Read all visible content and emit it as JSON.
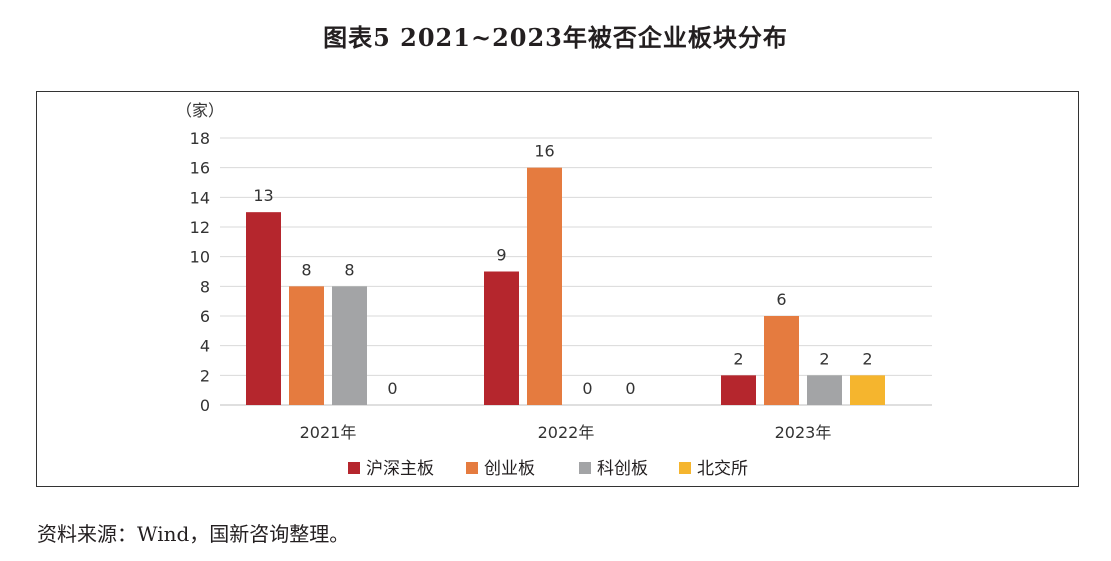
{
  "title": "图表5 2021~2023年被否企业板块分布",
  "source_note": "资料来源：Wind，国新咨询整理。",
  "chart_data": {
    "type": "bar",
    "title": "",
    "ylabel": "（家）",
    "xlabel": "",
    "ylim": [
      0,
      18
    ],
    "yticks": [
      0,
      2,
      4,
      6,
      8,
      10,
      12,
      14,
      16,
      18
    ],
    "grid": true,
    "legend_position": "bottom",
    "categories": [
      "2021年",
      "2022年",
      "2023年"
    ],
    "series": [
      {
        "name": "沪深主板",
        "color": "#b5262d",
        "values": [
          13,
          9,
          2
        ]
      },
      {
        "name": "创业板",
        "color": "#e57b3f",
        "values": [
          8,
          16,
          6
        ]
      },
      {
        "name": "科创板",
        "color": "#a3a4a6",
        "values": [
          8,
          0,
          2
        ]
      },
      {
        "name": "北交所",
        "color": "#f5b52e",
        "values": [
          0,
          0,
          2
        ]
      }
    ]
  }
}
